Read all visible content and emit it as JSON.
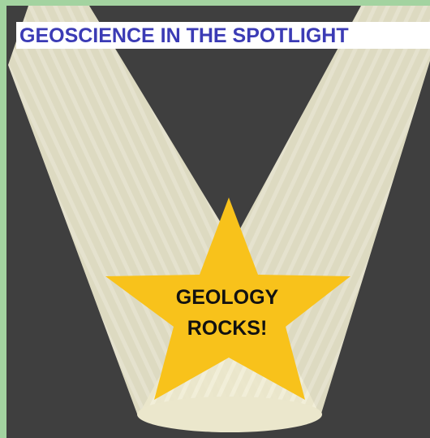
{
  "header": {
    "title": "GEOSCIENCE IN THE SPOTLIGHT"
  },
  "star": {
    "lines": [
      "GEOLOGY",
      "ROCKS!"
    ]
  }
}
